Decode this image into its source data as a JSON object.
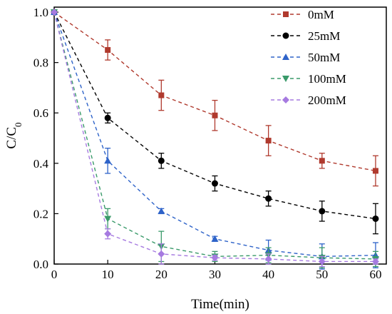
{
  "chart_data": {
    "type": "line",
    "xlabel": "Time(min)",
    "ylabel": "C/C",
    "ylabel_sub": "0",
    "xlim": [
      0,
      62
    ],
    "ylim": [
      0,
      1.02
    ],
    "x_ticks": [
      "0",
      "10",
      "20",
      "30",
      "40",
      "50",
      "60"
    ],
    "y_ticks": [
      "0.0",
      "0.2",
      "0.4",
      "0.6",
      "0.8",
      "1.0"
    ],
    "grid": false,
    "legend_position": "top-right",
    "line_style": "dashed",
    "error_bars": true,
    "x": [
      0,
      10,
      20,
      30,
      40,
      50,
      60
    ],
    "series": [
      {
        "name": "0mM",
        "color": "#b03a2e",
        "marker": "square",
        "values": [
          1.0,
          0.85,
          0.67,
          0.59,
          0.49,
          0.41,
          0.37
        ],
        "errors": [
          0,
          0.04,
          0.06,
          0.06,
          0.06,
          0.03,
          0.06
        ]
      },
      {
        "name": "25mM",
        "color": "#000000",
        "marker": "circle",
        "values": [
          1.0,
          0.58,
          0.41,
          0.32,
          0.26,
          0.21,
          0.18
        ],
        "errors": [
          0,
          0.02,
          0.03,
          0.03,
          0.03,
          0.04,
          0.06
        ]
      },
      {
        "name": "50mM",
        "color": "#2e63c9",
        "marker": "triangle-up",
        "values": [
          1.0,
          0.41,
          0.21,
          0.1,
          0.055,
          0.03,
          0.035
        ],
        "errors": [
          0,
          0.05,
          0.01,
          0.01,
          0.04,
          0.05,
          0.05
        ]
      },
      {
        "name": "100mM",
        "color": "#3a9a6a",
        "marker": "triangle-down",
        "values": [
          1.0,
          0.18,
          0.07,
          0.03,
          0.035,
          0.025,
          0.02
        ],
        "errors": [
          0,
          0.04,
          0.06,
          0.02,
          0.03,
          0.04,
          0.03
        ]
      },
      {
        "name": "200mM",
        "color": "#a67ae0",
        "marker": "diamond",
        "values": [
          1.0,
          0.12,
          0.04,
          0.025,
          0.02,
          0.01,
          0.01
        ],
        "errors": [
          0,
          0.02,
          0.04,
          0.01,
          0.02,
          0.02,
          0.01
        ]
      }
    ]
  }
}
